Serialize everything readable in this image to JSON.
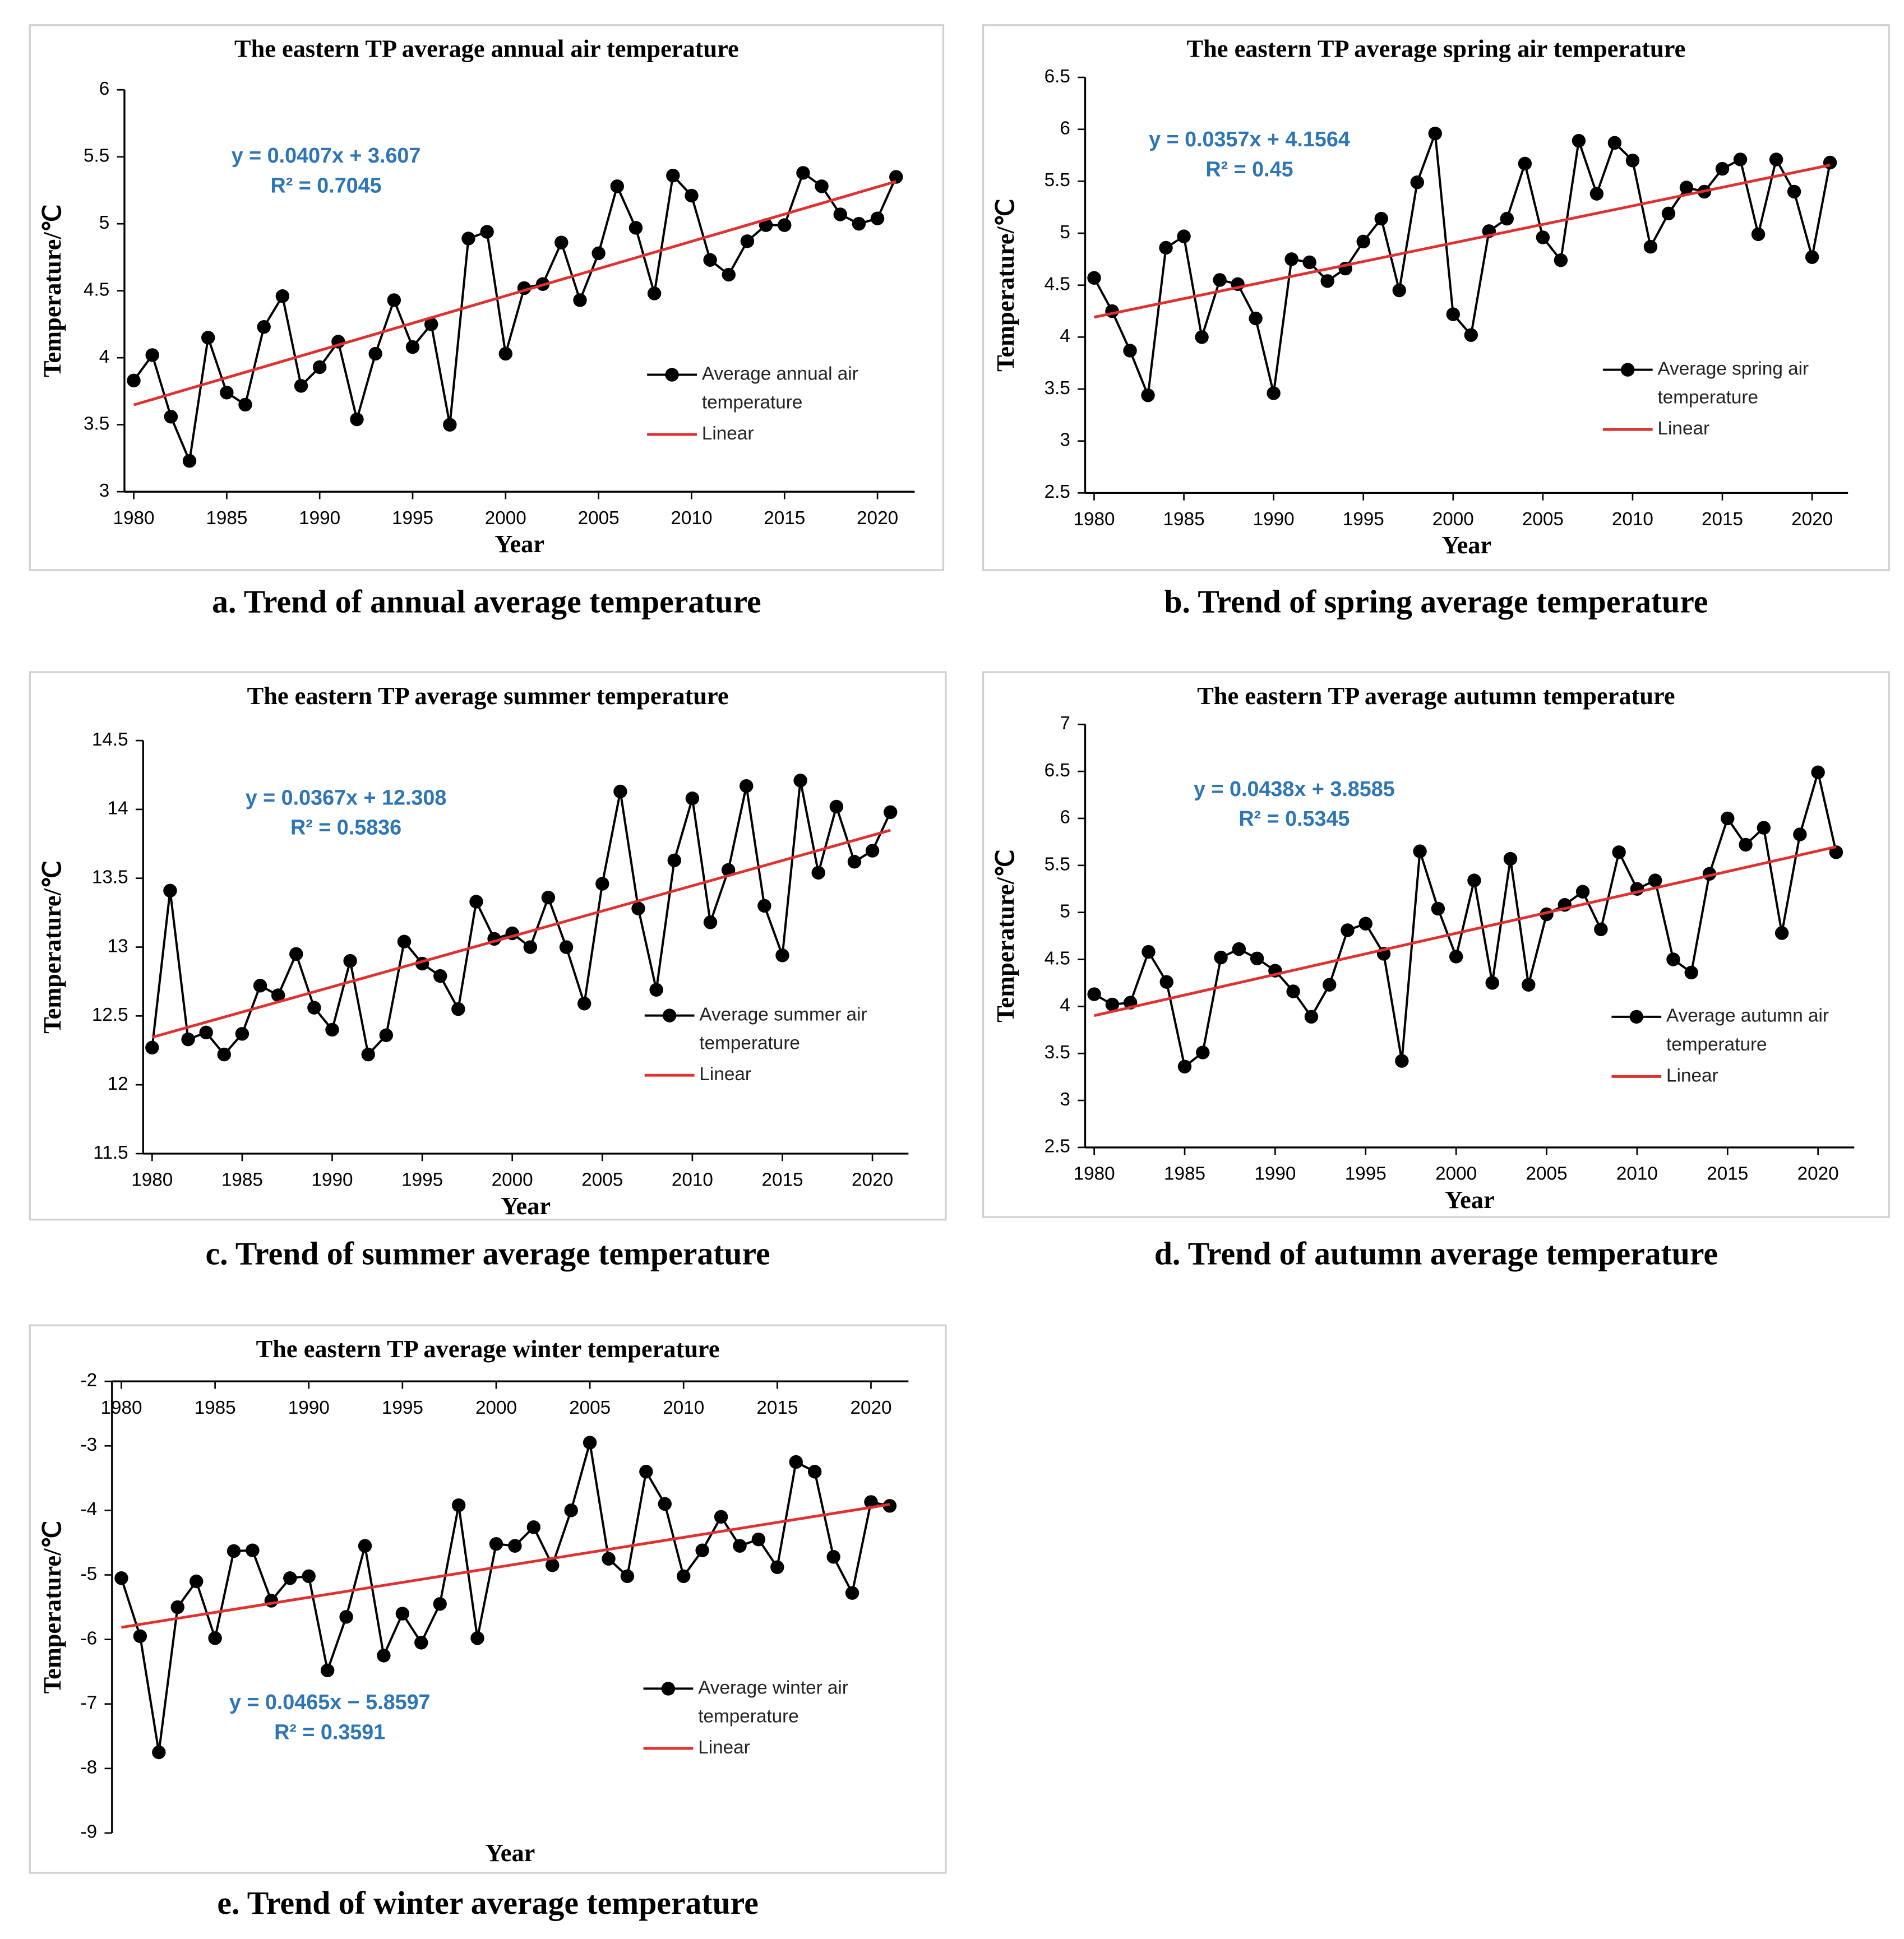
{
  "chart_data": [
    {
      "type": "line",
      "title": "The eastern TP average annual air temperature",
      "caption": "a. Trend of annual average temperature",
      "xlabel": "Year",
      "ylabel": "Temperature/℃",
      "x": [
        1980,
        1981,
        1982,
        1983,
        1984,
        1985,
        1986,
        1987,
        1988,
        1989,
        1990,
        1991,
        1992,
        1993,
        1994,
        1995,
        1996,
        1997,
        1998,
        1999,
        2000,
        2001,
        2002,
        2003,
        2004,
        2005,
        2006,
        2007,
        2008,
        2009,
        2010,
        2011,
        2012,
        2013,
        2014,
        2015,
        2016,
        2017,
        2018,
        2019,
        2020,
        2021
      ],
      "xlim": [
        1979.5,
        2022
      ],
      "xticks": [
        1980,
        1985,
        1990,
        1995,
        2000,
        2005,
        2010,
        2015,
        2020
      ],
      "ylim": [
        3,
        6
      ],
      "yticks": [
        3,
        3.5,
        4,
        4.5,
        5,
        5.5,
        6
      ],
      "series": [
        {
          "name": "Average annual air temperature",
          "color": "#000000",
          "values": [
            3.83,
            4.02,
            3.56,
            3.23,
            4.15,
            3.74,
            3.65,
            4.23,
            4.46,
            3.79,
            3.93,
            4.12,
            3.54,
            4.03,
            4.43,
            4.08,
            4.25,
            3.5,
            4.89,
            4.94,
            4.03,
            4.52,
            4.55,
            4.86,
            4.43,
            4.78,
            5.28,
            4.97,
            4.48,
            5.36,
            5.21,
            4.73,
            4.62,
            4.87,
            4.99,
            4.99,
            5.38,
            5.28,
            5.07,
            5.0,
            5.04,
            5.35
          ]
        },
        {
          "name": "Linear",
          "color": "#e03030",
          "x": [
            1980,
            2021
          ],
          "values": [
            3.648,
            5.316
          ]
        }
      ],
      "annotations": [
        "y = 0.0407x + 3.607",
        "R² = 0.7045"
      ],
      "annotation_color": "#2e75b6"
    },
    {
      "type": "line",
      "title": "The eastern TP average spring air temperature",
      "caption": "b. Trend of spring average temperature",
      "xlabel": "Year",
      "ylabel": "Temperature/℃",
      "x": [
        1980,
        1981,
        1982,
        1983,
        1984,
        1985,
        1986,
        1987,
        1988,
        1989,
        1990,
        1991,
        1992,
        1993,
        1994,
        1995,
        1996,
        1997,
        1998,
        1999,
        2000,
        2001,
        2002,
        2003,
        2004,
        2005,
        2006,
        2007,
        2008,
        2009,
        2010,
        2011,
        2012,
        2013,
        2014,
        2015,
        2016,
        2017,
        2018,
        2019,
        2020,
        2021
      ],
      "xlim": [
        1979.5,
        2022
      ],
      "xticks": [
        1980,
        1985,
        1990,
        1995,
        2000,
        2005,
        2010,
        2015,
        2020
      ],
      "ylim": [
        2.5,
        6.5
      ],
      "yticks": [
        2.5,
        3,
        3.5,
        4,
        4.5,
        5,
        5.5,
        6,
        6.5
      ],
      "series": [
        {
          "name": "Average spring air temperature",
          "color": "#000000",
          "values": [
            4.57,
            4.25,
            3.87,
            3.44,
            4.86,
            4.97,
            4.0,
            4.55,
            4.51,
            4.18,
            3.46,
            4.75,
            4.72,
            4.54,
            4.66,
            4.92,
            5.14,
            4.45,
            5.49,
            5.96,
            4.22,
            4.02,
            5.02,
            5.14,
            5.67,
            4.96,
            4.74,
            5.89,
            5.38,
            5.87,
            5.7,
            4.87,
            5.19,
            5.44,
            5.4,
            5.62,
            5.71,
            4.99,
            5.71,
            5.4,
            4.77,
            5.68
          ]
        },
        {
          "name": "Linear",
          "color": "#e03030",
          "x": [
            1980,
            2021
          ],
          "values": [
            4.192,
            5.656
          ]
        }
      ],
      "annotations": [
        "y = 0.0357x + 4.1564",
        "R² = 0.45"
      ],
      "annotation_color": "#2e75b6"
    },
    {
      "type": "line",
      "title": "The eastern TP average summer temperature",
      "caption": "c. Trend of summer average temperature",
      "xlabel": "Year",
      "ylabel": "Temperature/℃",
      "x": [
        1980,
        1981,
        1982,
        1983,
        1984,
        1985,
        1986,
        1987,
        1988,
        1989,
        1990,
        1991,
        1992,
        1993,
        1994,
        1995,
        1996,
        1997,
        1998,
        1999,
        2000,
        2001,
        2002,
        2003,
        2004,
        2005,
        2006,
        2007,
        2008,
        2009,
        2010,
        2011,
        2012,
        2013,
        2014,
        2015,
        2016,
        2017,
        2018,
        2019,
        2020,
        2021
      ],
      "xlim": [
        1979.5,
        2022
      ],
      "xticks": [
        1980,
        1985,
        1990,
        1995,
        2000,
        2005,
        2010,
        2015,
        2020
      ],
      "ylim": [
        11.5,
        14.5
      ],
      "yticks": [
        11.5,
        12,
        12.5,
        13,
        13.5,
        14,
        14.5
      ],
      "series": [
        {
          "name": "Average summer air temperature",
          "color": "#000000",
          "values": [
            12.27,
            13.41,
            12.33,
            12.38,
            12.22,
            12.37,
            12.72,
            12.65,
            12.95,
            12.56,
            12.4,
            12.9,
            12.22,
            12.36,
            13.04,
            12.88,
            12.79,
            12.55,
            13.33,
            13.06,
            13.1,
            13.0,
            13.36,
            13.0,
            12.59,
            13.46,
            14.13,
            13.28,
            12.69,
            13.63,
            14.08,
            13.18,
            13.56,
            14.17,
            13.3,
            12.94,
            14.21,
            13.54,
            14.02,
            13.62,
            13.7,
            13.98
          ]
        },
        {
          "name": "Linear",
          "color": "#e03030",
          "x": [
            1980,
            2021
          ],
          "values": [
            12.345,
            13.849
          ]
        }
      ],
      "annotations": [
        "y = 0.0367x + 12.308",
        "R² = 0.5836"
      ],
      "annotation_color": "#2e75b6"
    },
    {
      "type": "line",
      "title": "The eastern TP average autumn temperature",
      "caption": "d. Trend of autumn average temperature",
      "xlabel": "Year",
      "ylabel": "Temperature/℃",
      "x": [
        1980,
        1981,
        1982,
        1983,
        1984,
        1985,
        1986,
        1987,
        1988,
        1989,
        1990,
        1991,
        1992,
        1993,
        1994,
        1995,
        1996,
        1997,
        1998,
        1999,
        2000,
        2001,
        2002,
        2003,
        2004,
        2005,
        2006,
        2007,
        2008,
        2009,
        2010,
        2011,
        2012,
        2013,
        2014,
        2015,
        2016,
        2017,
        2018,
        2019,
        2020,
        2021
      ],
      "xlim": [
        1979.5,
        2022
      ],
      "xticks": [
        1980,
        1985,
        1990,
        1995,
        2000,
        2005,
        2010,
        2015,
        2020
      ],
      "ylim": [
        2.5,
        7
      ],
      "yticks": [
        2.5,
        3,
        3.5,
        4,
        4.5,
        5,
        5.5,
        6,
        6.5,
        7
      ],
      "series": [
        {
          "name": "Average autumn air temperature",
          "color": "#000000",
          "values": [
            4.13,
            4.02,
            4.04,
            4.58,
            4.26,
            3.36,
            3.51,
            4.52,
            4.61,
            4.51,
            4.38,
            4.16,
            3.89,
            4.23,
            4.81,
            4.88,
            4.56,
            3.42,
            5.65,
            5.04,
            4.53,
            5.34,
            4.25,
            5.57,
            4.23,
            4.98,
            5.08,
            5.22,
            4.82,
            5.64,
            5.25,
            5.34,
            4.5,
            4.36,
            5.41,
            6.0,
            5.72,
            5.9,
            4.78,
            5.83,
            6.49,
            5.64
          ]
        },
        {
          "name": "Linear",
          "color": "#e03030",
          "x": [
            1980,
            2021
          ],
          "values": [
            3.902,
            5.698
          ]
        }
      ],
      "annotations": [
        "y = 0.0438x + 3.8585",
        "R² = 0.5345"
      ],
      "annotation_color": "#2e75b6"
    },
    {
      "type": "line",
      "title": "The eastern TP average winter temperature",
      "caption": "e. Trend of winter average temperature",
      "xlabel": "Year",
      "ylabel": "Temperature/℃",
      "x_axis_position": "top",
      "x": [
        1980,
        1981,
        1982,
        1983,
        1984,
        1985,
        1986,
        1987,
        1988,
        1989,
        1990,
        1991,
        1992,
        1993,
        1994,
        1995,
        1996,
        1997,
        1998,
        1999,
        2000,
        2001,
        2002,
        2003,
        2004,
        2005,
        2006,
        2007,
        2008,
        2009,
        2010,
        2011,
        2012,
        2013,
        2014,
        2015,
        2016,
        2017,
        2018,
        2019,
        2020,
        2021
      ],
      "xlim": [
        1979.5,
        2022
      ],
      "xticks": [
        1980,
        1985,
        1990,
        1995,
        2000,
        2005,
        2010,
        2015,
        2020
      ],
      "ylim": [
        -9,
        -2
      ],
      "yticks": [
        -9,
        -8,
        -7,
        -6,
        -5,
        -4,
        -3,
        -2
      ],
      "series": [
        {
          "name": "Average winter air temperature",
          "color": "#000000",
          "values": [
            -5.05,
            -5.95,
            -7.75,
            -5.5,
            -5.1,
            -5.98,
            -4.63,
            -4.62,
            -5.4,
            -5.05,
            -5.02,
            -6.48,
            -5.65,
            -4.55,
            -6.25,
            -5.6,
            -6.05,
            -5.45,
            -3.92,
            -5.98,
            -4.52,
            -4.55,
            -4.26,
            -4.85,
            -4.0,
            -2.95,
            -4.75,
            -5.02,
            -3.4,
            -3.9,
            -5.02,
            -4.62,
            -4.1,
            -4.55,
            -4.45,
            -4.88,
            -3.25,
            -3.4,
            -4.72,
            -5.28,
            -3.87,
            -3.93
          ]
        },
        {
          "name": "Linear",
          "color": "#e03030",
          "x": [
            1980,
            2021
          ],
          "values": [
            -5.813,
            -3.907
          ]
        }
      ],
      "annotations": [
        "y = 0.0465x − 5.8597",
        "R² = 0.3591"
      ],
      "annotation_color": "#2e75b6"
    }
  ]
}
